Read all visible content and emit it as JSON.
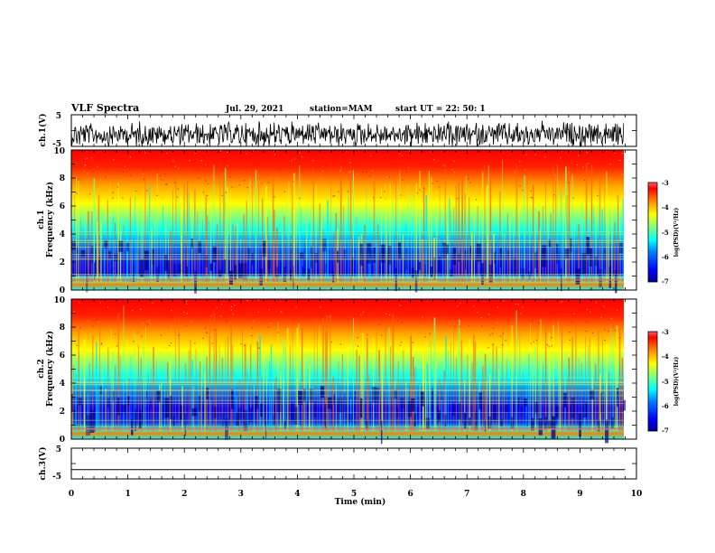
{
  "header": {
    "title": "VLF Spectra",
    "date": "Jul. 29, 2021",
    "station": "station=MAM",
    "start": "start UT =  22: 50: 1"
  },
  "colors": {
    "jet": [
      "#00008f",
      "#0000ff",
      "#0080ff",
      "#00ffff",
      "#80ff80",
      "#ffff00",
      "#ff8000",
      "#ff0000",
      "#800000"
    ]
  },
  "chart_data": [
    {
      "type": "line",
      "name": "ch1-waveform",
      "ylabel": "ch.1(V)",
      "ylim": [
        -5,
        5
      ],
      "yticks": [
        "5",
        "-5"
      ],
      "xlim": [
        0,
        10
      ]
    },
    {
      "type": "heatmap",
      "name": "ch1-spectrogram",
      "ylabel_line1": "ch.1",
      "ylabel_line2": "Frequency (kHz)",
      "ylim": [
        0,
        10
      ],
      "yticks": [
        "0",
        "2",
        "4",
        "6",
        "8",
        "10"
      ],
      "xlim": [
        0,
        10
      ],
      "colorbar": {
        "label": "log(PSD)(V²/Hz)",
        "range": [
          -7,
          -3
        ],
        "ticks": [
          "-3",
          "-4",
          "-5",
          "-6",
          "-7"
        ]
      }
    },
    {
      "type": "heatmap",
      "name": "ch2-spectrogram",
      "ylabel_line1": "ch.2",
      "ylabel_line2": "Frequency (kHz)",
      "ylim": [
        0,
        10
      ],
      "yticks": [
        "0",
        "2",
        "4",
        "6",
        "8",
        "10"
      ],
      "xlim": [
        0,
        10
      ],
      "colorbar": {
        "label": "log(PSD)(V²/Hz)",
        "range": [
          -7,
          -3
        ],
        "ticks": [
          "-3",
          "-4",
          "-5",
          "-6",
          "-7"
        ]
      }
    },
    {
      "type": "line",
      "name": "ch3-waveform",
      "ylabel": "ch.3(V)",
      "ylim": [
        -5,
        5
      ],
      "yticks": [
        "5",
        "-5"
      ],
      "xlim": [
        0,
        10
      ],
      "xlabel": "Time (min)",
      "xticks": [
        "0",
        "1",
        "2",
        "3",
        "4",
        "5",
        "6",
        "7",
        "8",
        "9",
        "10"
      ],
      "series": [
        {
          "x": [
            0,
            9.8
          ],
          "y": [
            -2,
            -2
          ]
        }
      ]
    }
  ]
}
